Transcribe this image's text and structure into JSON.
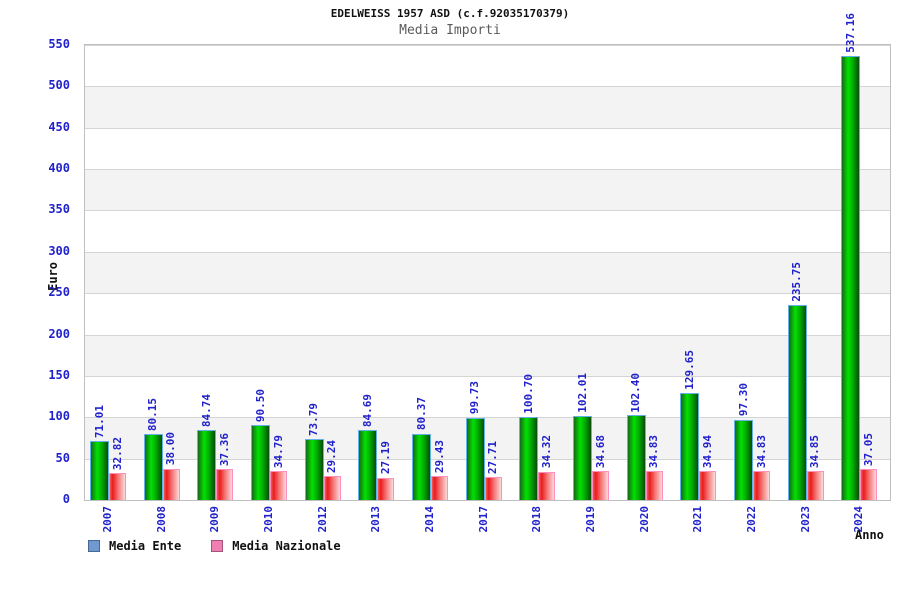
{
  "chart_data": {
    "type": "bar",
    "title": "EDELWEISS 1957 ASD (c.f.92035170379)",
    "subtitle": "Media Importi",
    "xlabel": "Anno",
    "ylabel": "Euro",
    "ylim": [
      0,
      550
    ],
    "ytick_step": 50,
    "grid": "horizontal-bands",
    "legend_position": "bottom-left",
    "value_label_format": "2-decimals-rotated-90",
    "categories": [
      "2007",
      "2008",
      "2009",
      "2010",
      "2012",
      "2013",
      "2014",
      "2017",
      "2018",
      "2019",
      "2020",
      "2021",
      "2022",
      "2023",
      "2024"
    ],
    "series": [
      {
        "name": "Media Ente",
        "values": [
          71.01,
          80.15,
          84.74,
          90.5,
          73.79,
          84.69,
          80.37,
          99.73,
          100.7,
          102.01,
          102.4,
          129.65,
          97.3,
          235.75,
          537.16
        ]
      },
      {
        "name": "Media Nazionale",
        "values": [
          32.82,
          38.0,
          37.36,
          34.79,
          29.24,
          27.19,
          29.43,
          27.71,
          34.32,
          34.68,
          34.83,
          34.94,
          34.83,
          34.85,
          37.05
        ]
      }
    ]
  },
  "colors": {
    "label_blue": "#2222cc",
    "title_black": "#111111",
    "subtitle_gray": "#5a5a5a",
    "grid_line": "#d4d4d4",
    "band_gray": "#f3f3f3",
    "plot_border": "#c0c0c0",
    "green_bar": [
      "#156b15",
      "#02e002",
      "#01b001",
      "#0a4d0a"
    ],
    "green_border": "#63b1e5",
    "red_bar": [
      "#ef5a5a",
      "#ea1c1c",
      "#f57878",
      "#fad9d9"
    ],
    "red_border": "#ff8fc0",
    "legend_ente": "#6f9ad0",
    "legend_nazionale": "#ee7fb0"
  }
}
